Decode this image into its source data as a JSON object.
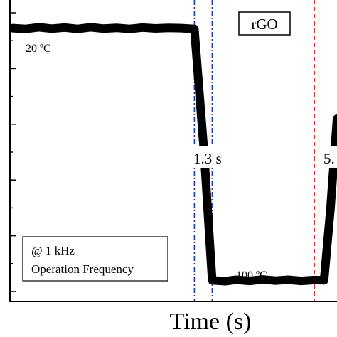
{
  "chart_data": {
    "type": "line",
    "title": "",
    "xlabel": "Time (s)",
    "ylabel": "",
    "xlim": [
      0,
      10
    ],
    "ylim": [
      0,
      100
    ],
    "series": [
      {
        "name": "rGO",
        "x": [
          0,
          0.4,
          0.8,
          1.2,
          1.6,
          2.0,
          2.4,
          2.8,
          3.2,
          3.6,
          4.0,
          4.4,
          4.8,
          5.2,
          5.6,
          5.9,
          6.15,
          6.55,
          6.9,
          7.3,
          7.7,
          8.1,
          8.5,
          8.9,
          9.3,
          9.6,
          9.8,
          10.0
        ],
        "values": [
          94.5,
          94.2,
          94.8,
          94.3,
          94.7,
          94.2,
          94.8,
          94.3,
          94.6,
          94.2,
          94.7,
          94.4,
          94.6,
          94.5,
          94.2,
          50.0,
          4.0,
          3.7,
          4.2,
          3.8,
          4.3,
          3.9,
          4.2,
          3.8,
          4.1,
          4.0,
          30.0,
          62.0
        ]
      }
    ],
    "annotations": {
      "legend_label": "rGO",
      "start_temp": "20 ºC",
      "end_temp": "100 ºC",
      "response_time": "1.3 s",
      "recovery_time": "5.",
      "condition_line1": "@ 1 kHz",
      "condition_line2": "Operation Frequency"
    },
    "markers": [
      {
        "x": 5.6,
        "color": "#2040a0",
        "style": "dashdot"
      },
      {
        "x": 6.15,
        "color": "#2040a0",
        "style": "dashdot"
      },
      {
        "x": 9.3,
        "color": "#cc2020",
        "style": "dashed"
      }
    ],
    "grid": false,
    "legend": "top-right"
  },
  "colors": {
    "line": "#000000",
    "blue_marker": "#2040a0",
    "red_marker": "#cc2020"
  }
}
